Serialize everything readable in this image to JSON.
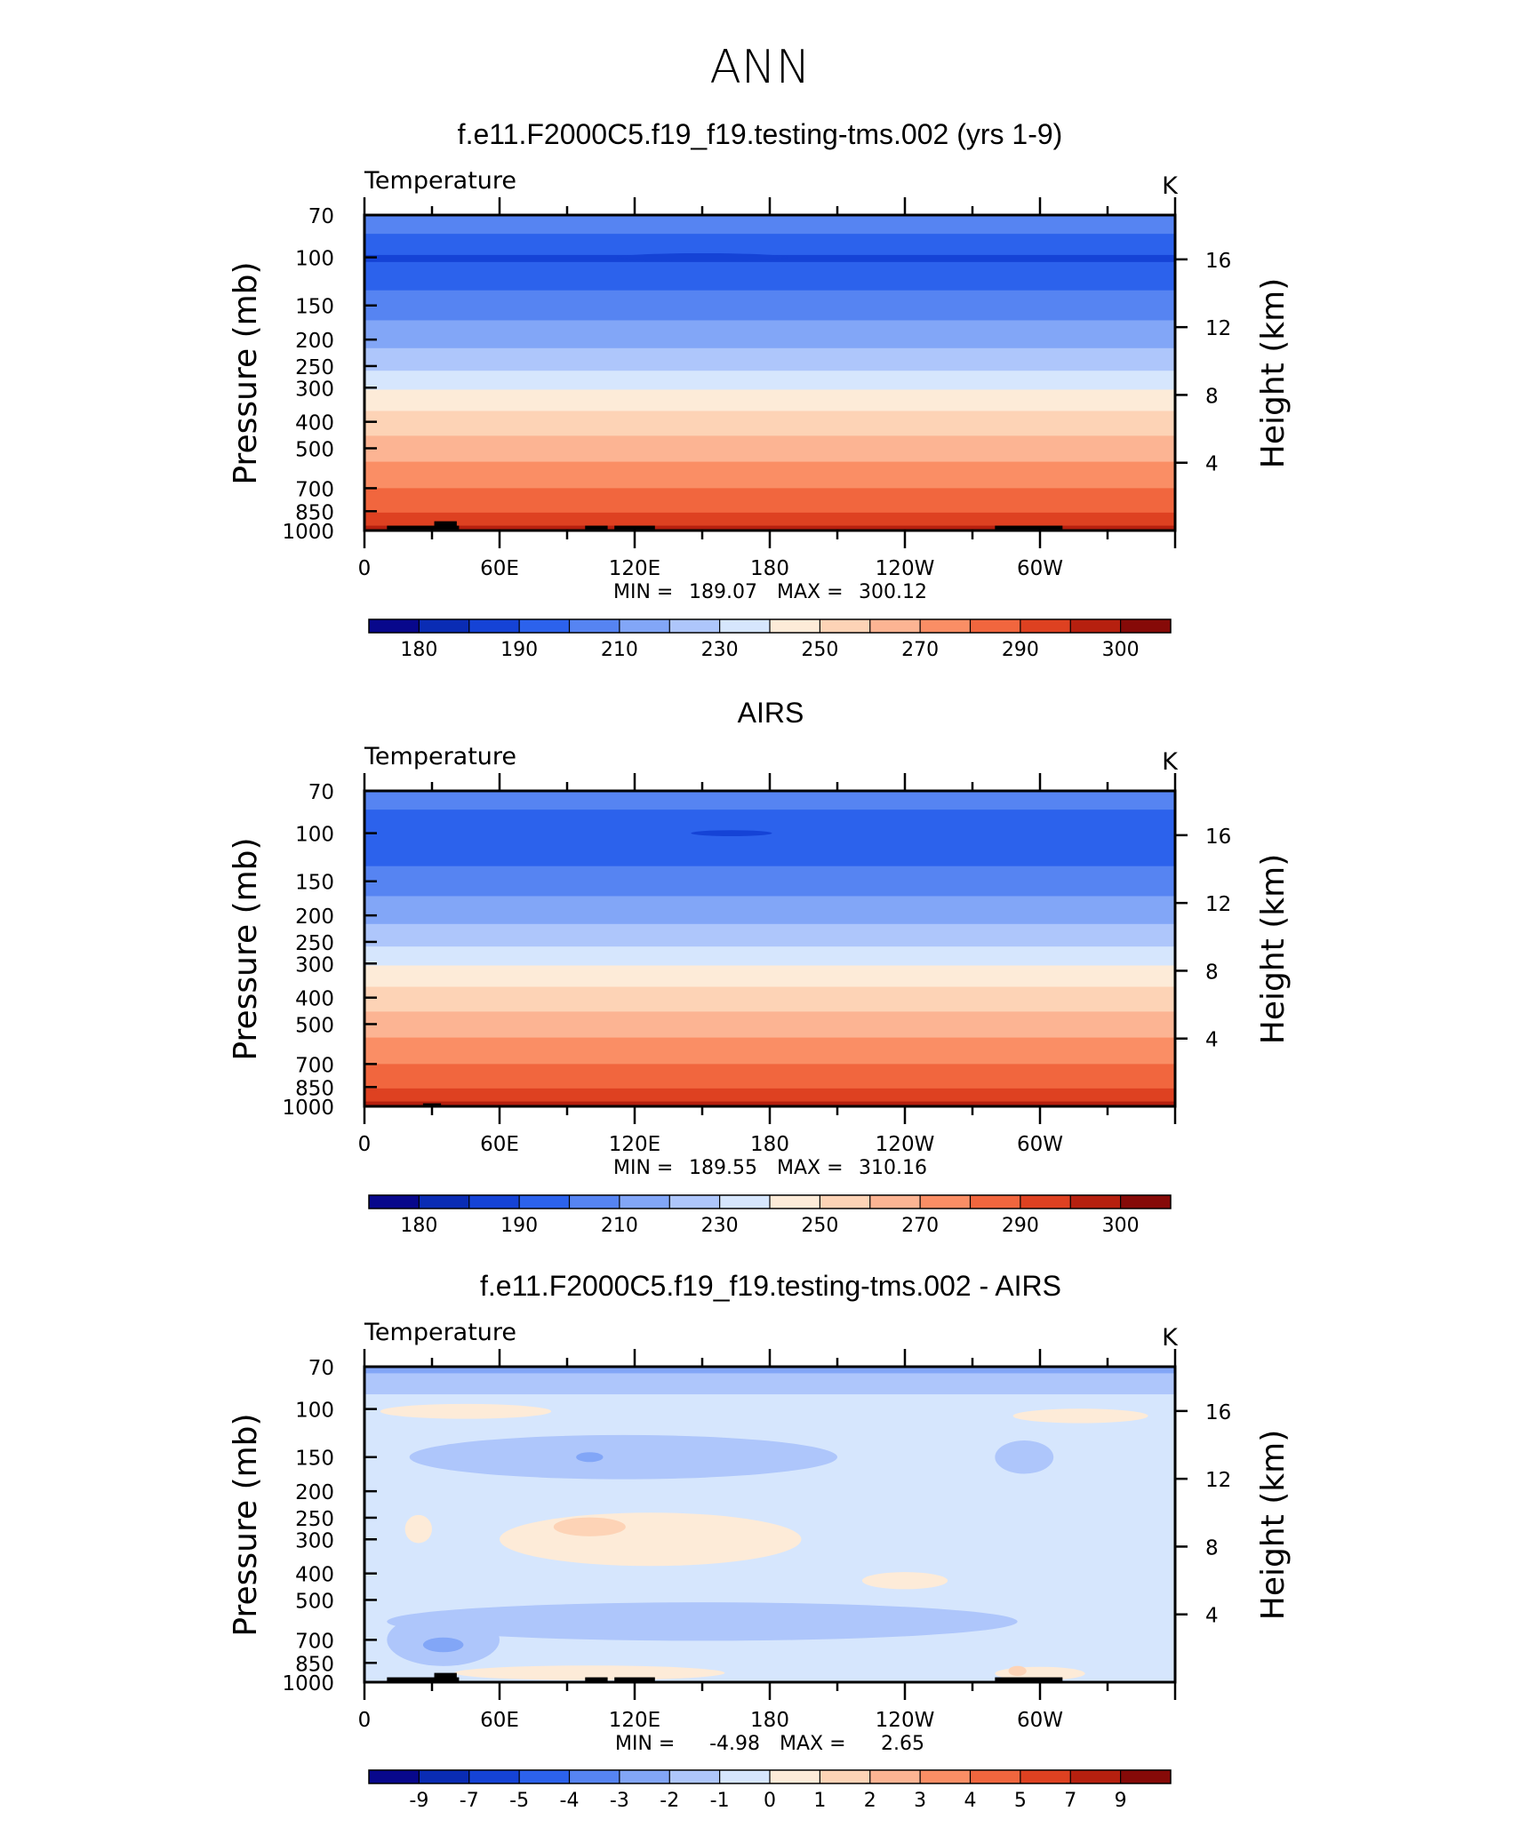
{
  "figure_title": "ANN",
  "palette_main": [
    "#08088c",
    "#0a2cb4",
    "#1543d6",
    "#2c62ec",
    "#5684f2",
    "#82a6f7",
    "#aec6fb",
    "#d6e6fd",
    "#fdebd8",
    "#fdd3b6",
    "#fcb493",
    "#fa8e65",
    "#f1663e",
    "#de4121",
    "#b6200f",
    "#860a08"
  ],
  "palette_diff": [
    "#08088c",
    "#0a2cb4",
    "#1543d6",
    "#2c62ec",
    "#5684f2",
    "#82a6f7",
    "#aec6fb",
    "#d6e6fd",
    "#fdebd8",
    "#fdd3b6",
    "#fcb493",
    "#fa8e65",
    "#f1663e",
    "#de4121",
    "#b6200f",
    "#860a08"
  ],
  "chart_data": [
    {
      "type": "heatmap",
      "title": "f.e11.F2000C5.f19_f19.testing-tms.002 (yrs 1-9)",
      "subtitle_left": "Temperature",
      "units": "K",
      "ylabel": "Pressure (mb)",
      "ylabel_right": "Height (km)",
      "y_ticks": [
        "70",
        "100",
        "150",
        "200",
        "250",
        "300",
        "400",
        "500",
        "700",
        "850",
        "1000"
      ],
      "y_tick_values": [
        70,
        100,
        150,
        200,
        250,
        300,
        400,
        500,
        700,
        850,
        1000
      ],
      "y2_ticks": [
        "16",
        "12",
        "8",
        "4"
      ],
      "y2_tick_values": [
        16,
        12,
        8,
        4
      ],
      "x_ticks": [
        "0",
        "60E",
        "120E",
        "180",
        "120W",
        "60W"
      ],
      "x_tick_values": [
        0,
        60,
        120,
        180,
        240,
        300
      ],
      "xlim": [
        0,
        360
      ],
      "min_max_text": {
        "min_label": "MIN =",
        "min": "189.07",
        "max_label": "MAX =",
        "max": "300.12"
      },
      "colorbar_labels": [
        "180",
        "190",
        "210",
        "230",
        "250",
        "270",
        "290",
        "300"
      ],
      "level_bands": [
        {
          "p_top": 70,
          "p_bot": 82,
          "level": 4
        },
        {
          "p_top": 82,
          "p_bot": 98,
          "level": 3
        },
        {
          "p_top": 98,
          "p_bot": 104,
          "level": 2
        },
        {
          "p_top": 104,
          "p_bot": 132,
          "level": 3
        },
        {
          "p_top": 132,
          "p_bot": 170,
          "level": 4
        },
        {
          "p_top": 170,
          "p_bot": 215,
          "level": 5
        },
        {
          "p_top": 215,
          "p_bot": 260,
          "level": 6
        },
        {
          "p_top": 260,
          "p_bot": 305,
          "level": 7
        },
        {
          "p_top": 305,
          "p_bot": 365,
          "level": 8
        },
        {
          "p_top": 365,
          "p_bot": 450,
          "level": 9
        },
        {
          "p_top": 450,
          "p_bot": 560,
          "level": 10
        },
        {
          "p_top": 560,
          "p_bot": 700,
          "level": 11
        },
        {
          "p_top": 700,
          "p_bot": 860,
          "level": 12
        },
        {
          "p_top": 860,
          "p_bot": 960,
          "level": 13
        },
        {
          "p_top": 960,
          "p_bot": 1000,
          "level": 14
        }
      ],
      "terrain_blocks": [
        {
          "lon0": 10,
          "lon1": 42,
          "p_top": 960
        },
        {
          "lon0": 31,
          "lon1": 41,
          "p_top": 925
        },
        {
          "lon0": 98,
          "lon1": 108,
          "p_top": 960
        },
        {
          "lon0": 111,
          "lon1": 129,
          "p_top": 960
        },
        {
          "lon0": 280,
          "lon1": 310,
          "p_top": 960
        }
      ],
      "features": [
        {
          "kind": "ellipse",
          "lon": 150,
          "p": 100,
          "rx_deg": 38,
          "ry_p": 2,
          "level": 2
        }
      ]
    },
    {
      "type": "heatmap",
      "title": "AIRS",
      "subtitle_left": "Temperature",
      "units": "K",
      "ylabel": "Pressure (mb)",
      "ylabel_right": "Height (km)",
      "y_ticks": [
        "70",
        "100",
        "150",
        "200",
        "250",
        "300",
        "400",
        "500",
        "700",
        "850",
        "1000"
      ],
      "y_tick_values": [
        70,
        100,
        150,
        200,
        250,
        300,
        400,
        500,
        700,
        850,
        1000
      ],
      "y2_ticks": [
        "16",
        "12",
        "8",
        "4"
      ],
      "y2_tick_values": [
        16,
        12,
        8,
        4
      ],
      "x_ticks": [
        "0",
        "60E",
        "120E",
        "180",
        "120W",
        "60W"
      ],
      "x_tick_values": [
        0,
        60,
        120,
        180,
        240,
        300
      ],
      "xlim": [
        0,
        360
      ],
      "min_max_text": {
        "min_label": "MIN =",
        "min": "189.55",
        "max_label": "MAX =",
        "max": "310.16"
      },
      "colorbar_labels": [
        "180",
        "190",
        "210",
        "230",
        "250",
        "270",
        "290",
        "300"
      ],
      "level_bands": [
        {
          "p_top": 70,
          "p_bot": 82,
          "level": 4
        },
        {
          "p_top": 82,
          "p_bot": 98,
          "level": 3
        },
        {
          "p_top": 98,
          "p_bot": 104,
          "level": 3
        },
        {
          "p_top": 104,
          "p_bot": 132,
          "level": 3
        },
        {
          "p_top": 132,
          "p_bot": 170,
          "level": 4
        },
        {
          "p_top": 170,
          "p_bot": 215,
          "level": 5
        },
        {
          "p_top": 215,
          "p_bot": 260,
          "level": 6
        },
        {
          "p_top": 260,
          "p_bot": 305,
          "level": 7
        },
        {
          "p_top": 305,
          "p_bot": 365,
          "level": 8
        },
        {
          "p_top": 365,
          "p_bot": 450,
          "level": 9
        },
        {
          "p_top": 450,
          "p_bot": 560,
          "level": 10
        },
        {
          "p_top": 560,
          "p_bot": 700,
          "level": 11
        },
        {
          "p_top": 700,
          "p_bot": 860,
          "level": 12
        },
        {
          "p_top": 860,
          "p_bot": 960,
          "level": 13
        },
        {
          "p_top": 960,
          "p_bot": 1000,
          "level": 14
        }
      ],
      "terrain_blocks": [
        {
          "lon0": 26,
          "lon1": 34,
          "p_top": 975
        }
      ],
      "features": [
        {
          "kind": "ellipse",
          "lon": 163,
          "p": 100,
          "rx_deg": 18,
          "ry_p": 1,
          "level": 2
        }
      ]
    },
    {
      "type": "heatmap",
      "title": "f.e11.F2000C5.f19_f19.testing-tms.002 - AIRS",
      "subtitle_left": "Temperature",
      "units": "K",
      "ylabel": "Pressure (mb)",
      "ylabel_right": "Height (km)",
      "y_ticks": [
        "70",
        "100",
        "150",
        "200",
        "250",
        "300",
        "400",
        "500",
        "700",
        "850",
        "1000"
      ],
      "y_tick_values": [
        70,
        100,
        150,
        200,
        250,
        300,
        400,
        500,
        700,
        850,
        1000
      ],
      "y2_ticks": [
        "16",
        "12",
        "8",
        "4"
      ],
      "y2_tick_values": [
        16,
        12,
        8,
        4
      ],
      "x_ticks": [
        "0",
        "60E",
        "120E",
        "180",
        "120W",
        "60W"
      ],
      "x_tick_values": [
        0,
        60,
        120,
        180,
        240,
        300
      ],
      "xlim": [
        0,
        360
      ],
      "min_max_text": {
        "min_label": "MIN =",
        "min": "-4.98",
        "max_label": "MAX =",
        "max": "2.65"
      },
      "colorbar_labels": [
        "-9",
        "-7",
        "-5",
        "-4",
        "-3",
        "-2",
        "-1",
        "0",
        "1",
        "2",
        "3",
        "4",
        "5",
        "7",
        "9"
      ],
      "background_level": 7,
      "level_bands": [
        {
          "p_top": 70,
          "p_bot": 74,
          "level": 5
        },
        {
          "p_top": 74,
          "p_bot": 88,
          "level": 6
        }
      ],
      "terrain_blocks": [
        {
          "lon0": 10,
          "lon1": 42,
          "p_top": 960
        },
        {
          "lon0": 31,
          "lon1": 41,
          "p_top": 925
        },
        {
          "lon0": 98,
          "lon1": 108,
          "p_top": 960
        },
        {
          "lon0": 111,
          "lon1": 129,
          "p_top": 960
        },
        {
          "lon0": 280,
          "lon1": 310,
          "p_top": 960
        }
      ],
      "features": [
        {
          "kind": "ellipse",
          "lon": 45,
          "p": 102,
          "rx_deg": 38,
          "ry_p": 5,
          "level": 8
        },
        {
          "kind": "ellipse",
          "lon": 318,
          "p": 106,
          "rx_deg": 30,
          "ry_p": 5,
          "level": 8
        },
        {
          "kind": "ellipse",
          "lon": 115,
          "p": 150,
          "rx_deg": 95,
          "ry_p": 28,
          "level": 6
        },
        {
          "kind": "ellipse",
          "lon": 293,
          "p": 150,
          "rx_deg": 13,
          "ry_p": 20,
          "level": 6
        },
        {
          "kind": "ellipse",
          "lon": 100,
          "p": 150,
          "rx_deg": 6,
          "ry_p": 4,
          "level": 5
        },
        {
          "kind": "ellipse",
          "lon": 127,
          "p": 300,
          "rx_deg": 67,
          "ry_p": 70,
          "level": 8
        },
        {
          "kind": "ellipse",
          "lon": 100,
          "p": 270,
          "rx_deg": 16,
          "ry_p": 18,
          "level": 9
        },
        {
          "kind": "ellipse",
          "lon": 24,
          "p": 275,
          "rx_deg": 6,
          "ry_p": 30,
          "level": 8
        },
        {
          "kind": "ellipse",
          "lon": 240,
          "p": 425,
          "rx_deg": 19,
          "ry_p": 25,
          "level": 8
        },
        {
          "kind": "ellipse",
          "lon": 150,
          "p": 600,
          "rx_deg": 140,
          "ry_p": 95,
          "level": 6
        },
        {
          "kind": "ellipse",
          "lon": 35,
          "p": 700,
          "rx_deg": 25,
          "ry_p": 160,
          "level": 6
        },
        {
          "kind": "ellipse",
          "lon": 35,
          "p": 730,
          "rx_deg": 9,
          "ry_p": 35,
          "level": 5
        },
        {
          "kind": "ellipse",
          "lon": 100,
          "p": 925,
          "rx_deg": 60,
          "ry_p": 45,
          "level": 8
        },
        {
          "kind": "ellipse",
          "lon": 300,
          "p": 930,
          "rx_deg": 20,
          "ry_p": 40,
          "level": 8
        },
        {
          "kind": "ellipse",
          "lon": 290,
          "p": 910,
          "rx_deg": 4,
          "ry_p": 25,
          "level": 9
        }
      ]
    }
  ]
}
